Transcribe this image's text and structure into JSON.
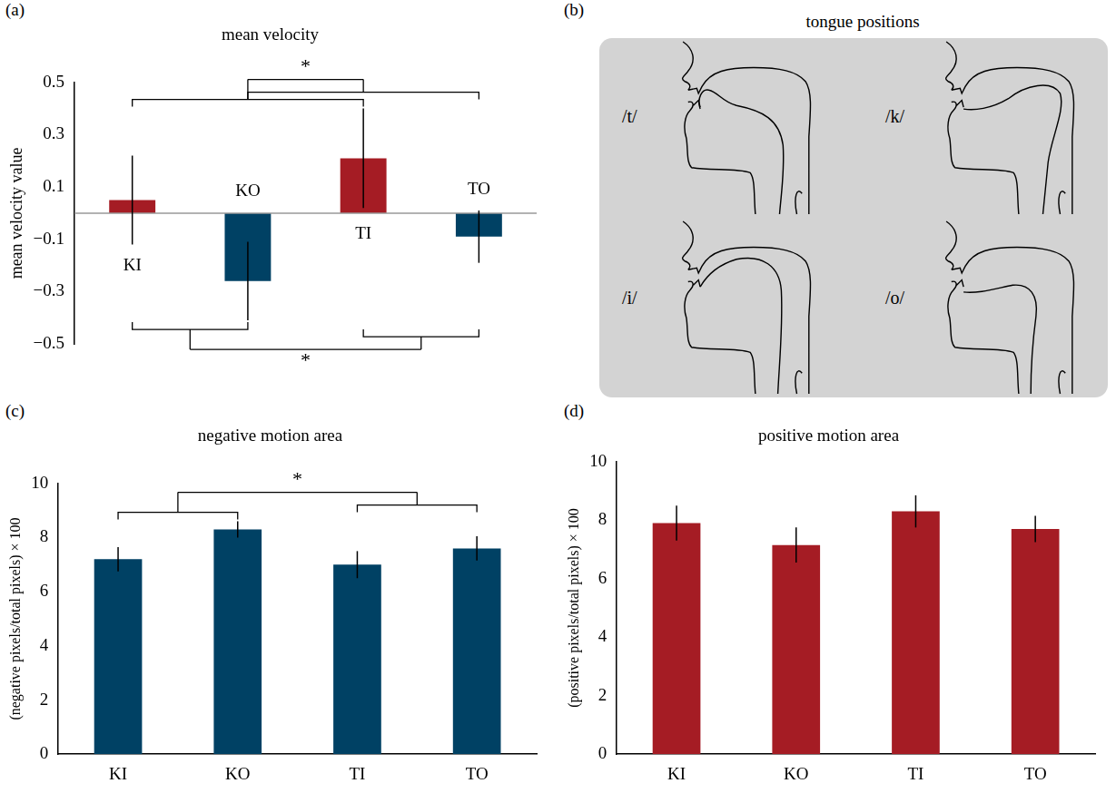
{
  "chart_data": [
    {
      "panel": "(a)",
      "type": "bar",
      "title": "mean velocity",
      "y_label": "mean velocity value",
      "categories": [
        "KI",
        "KO",
        "TI",
        "TO"
      ],
      "values": [
        0.05,
        -0.26,
        0.21,
        -0.09
      ],
      "errors": [
        0.17,
        0.15,
        0.19,
        0.1
      ],
      "colors": [
        "#a51c24",
        "#004164",
        "#a51c24",
        "#004164"
      ],
      "ylim": [
        -0.5,
        0.5
      ],
      "yticks": [
        {
          "value": -0.5,
          "label": "−0.5"
        },
        {
          "value": -0.3,
          "label": "−0.3"
        },
        {
          "value": -0.1,
          "label": "−0.1"
        },
        0.1,
        0.3,
        0.5
      ],
      "grid": false,
      "tick_labels": "y",
      "annotations": [
        {
          "text": "*",
          "groups": [
            [
              "KI",
              "TI"
            ],
            [
              "KO",
              "TO"
            ]
          ]
        },
        {
          "text": "*",
          "groups": [
            [
              "KI",
              "KO"
            ],
            [
              "TI",
              "TO"
            ]
          ]
        }
      ]
    },
    {
      "panel": "(c)",
      "type": "bar",
      "title": "negative motion area",
      "y_label": "(negative pixels/total pixels) × 100",
      "categories": [
        "KI",
        "KO",
        "TI",
        "TO"
      ],
      "values": [
        7.2,
        8.3,
        7.0,
        7.6
      ],
      "errors": [
        0.45,
        0.3,
        0.5,
        0.45
      ],
      "color": "#004164",
      "ylim": [
        0,
        10
      ],
      "yticks": [
        0,
        2,
        4,
        6,
        8,
        10
      ],
      "grid": false,
      "annotations": [
        {
          "text": "*",
          "groups": [
            [
              "KI",
              "KO"
            ],
            [
              "TI",
              "TO"
            ]
          ]
        }
      ]
    },
    {
      "panel": "(d)",
      "type": "bar",
      "title": "positive motion area",
      "y_label": "(positive pixels/total pixels) × 100",
      "categories": [
        "KI",
        "KO",
        "TI",
        "TO"
      ],
      "values": [
        7.9,
        7.15,
        8.3,
        7.7
      ],
      "errors": [
        0.6,
        0.6,
        0.55,
        0.45
      ],
      "color": "#a51c24",
      "ylim": [
        0,
        10
      ],
      "yticks": [
        0,
        2,
        4,
        6,
        8,
        10
      ],
      "grid": false
    }
  ],
  "diagram": {
    "panel": "(b)",
    "title": "tongue positions",
    "labels": [
      "/t/",
      "/k/",
      "/i/",
      "/o/"
    ]
  }
}
